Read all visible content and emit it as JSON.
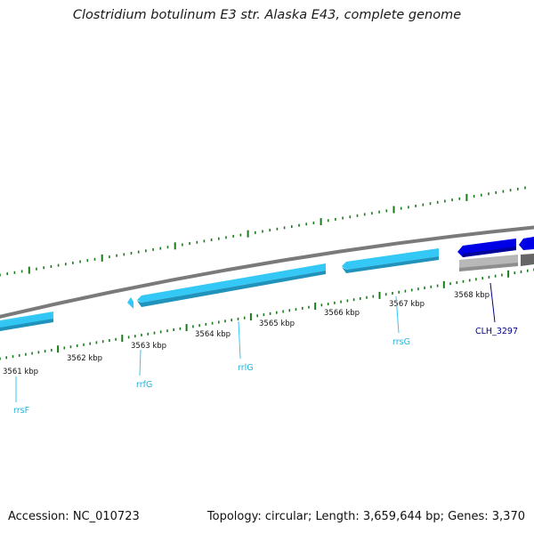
{
  "title": "Clostridium botulinum E3 str. Alaska E43, complete genome",
  "footer": {
    "accession": "Accession: NC_010723",
    "topology": "Topology: circular; Length: 3,659,644 bp; Genes: 3,370"
  },
  "colors": {
    "rrna": "#33c8f5",
    "rrna_shade": "#1f93bb",
    "cds_plus": "#0000e6",
    "cds_minus": "#b8b8b8",
    "backbone": "#7a7a7a",
    "ticks": "#1a7a1a",
    "label_rrna": "#21b2d8",
    "label_cds": "#00008b"
  },
  "ticks": [
    "3561 kbp",
    "3562 kbp",
    "3563 kbp",
    "3564 kbp",
    "3565 kbp",
    "3566 kbp",
    "3567 kbp",
    "3568 kbp"
  ],
  "features": [
    {
      "label": "rrsF",
      "type": "rRNA"
    },
    {
      "label": "rrfG",
      "type": "rRNA"
    },
    {
      "label": "rrlG",
      "type": "rRNA"
    },
    {
      "label": "rrsG",
      "type": "rRNA"
    },
    {
      "label": "CLH_3297",
      "type": "CDS"
    }
  ]
}
